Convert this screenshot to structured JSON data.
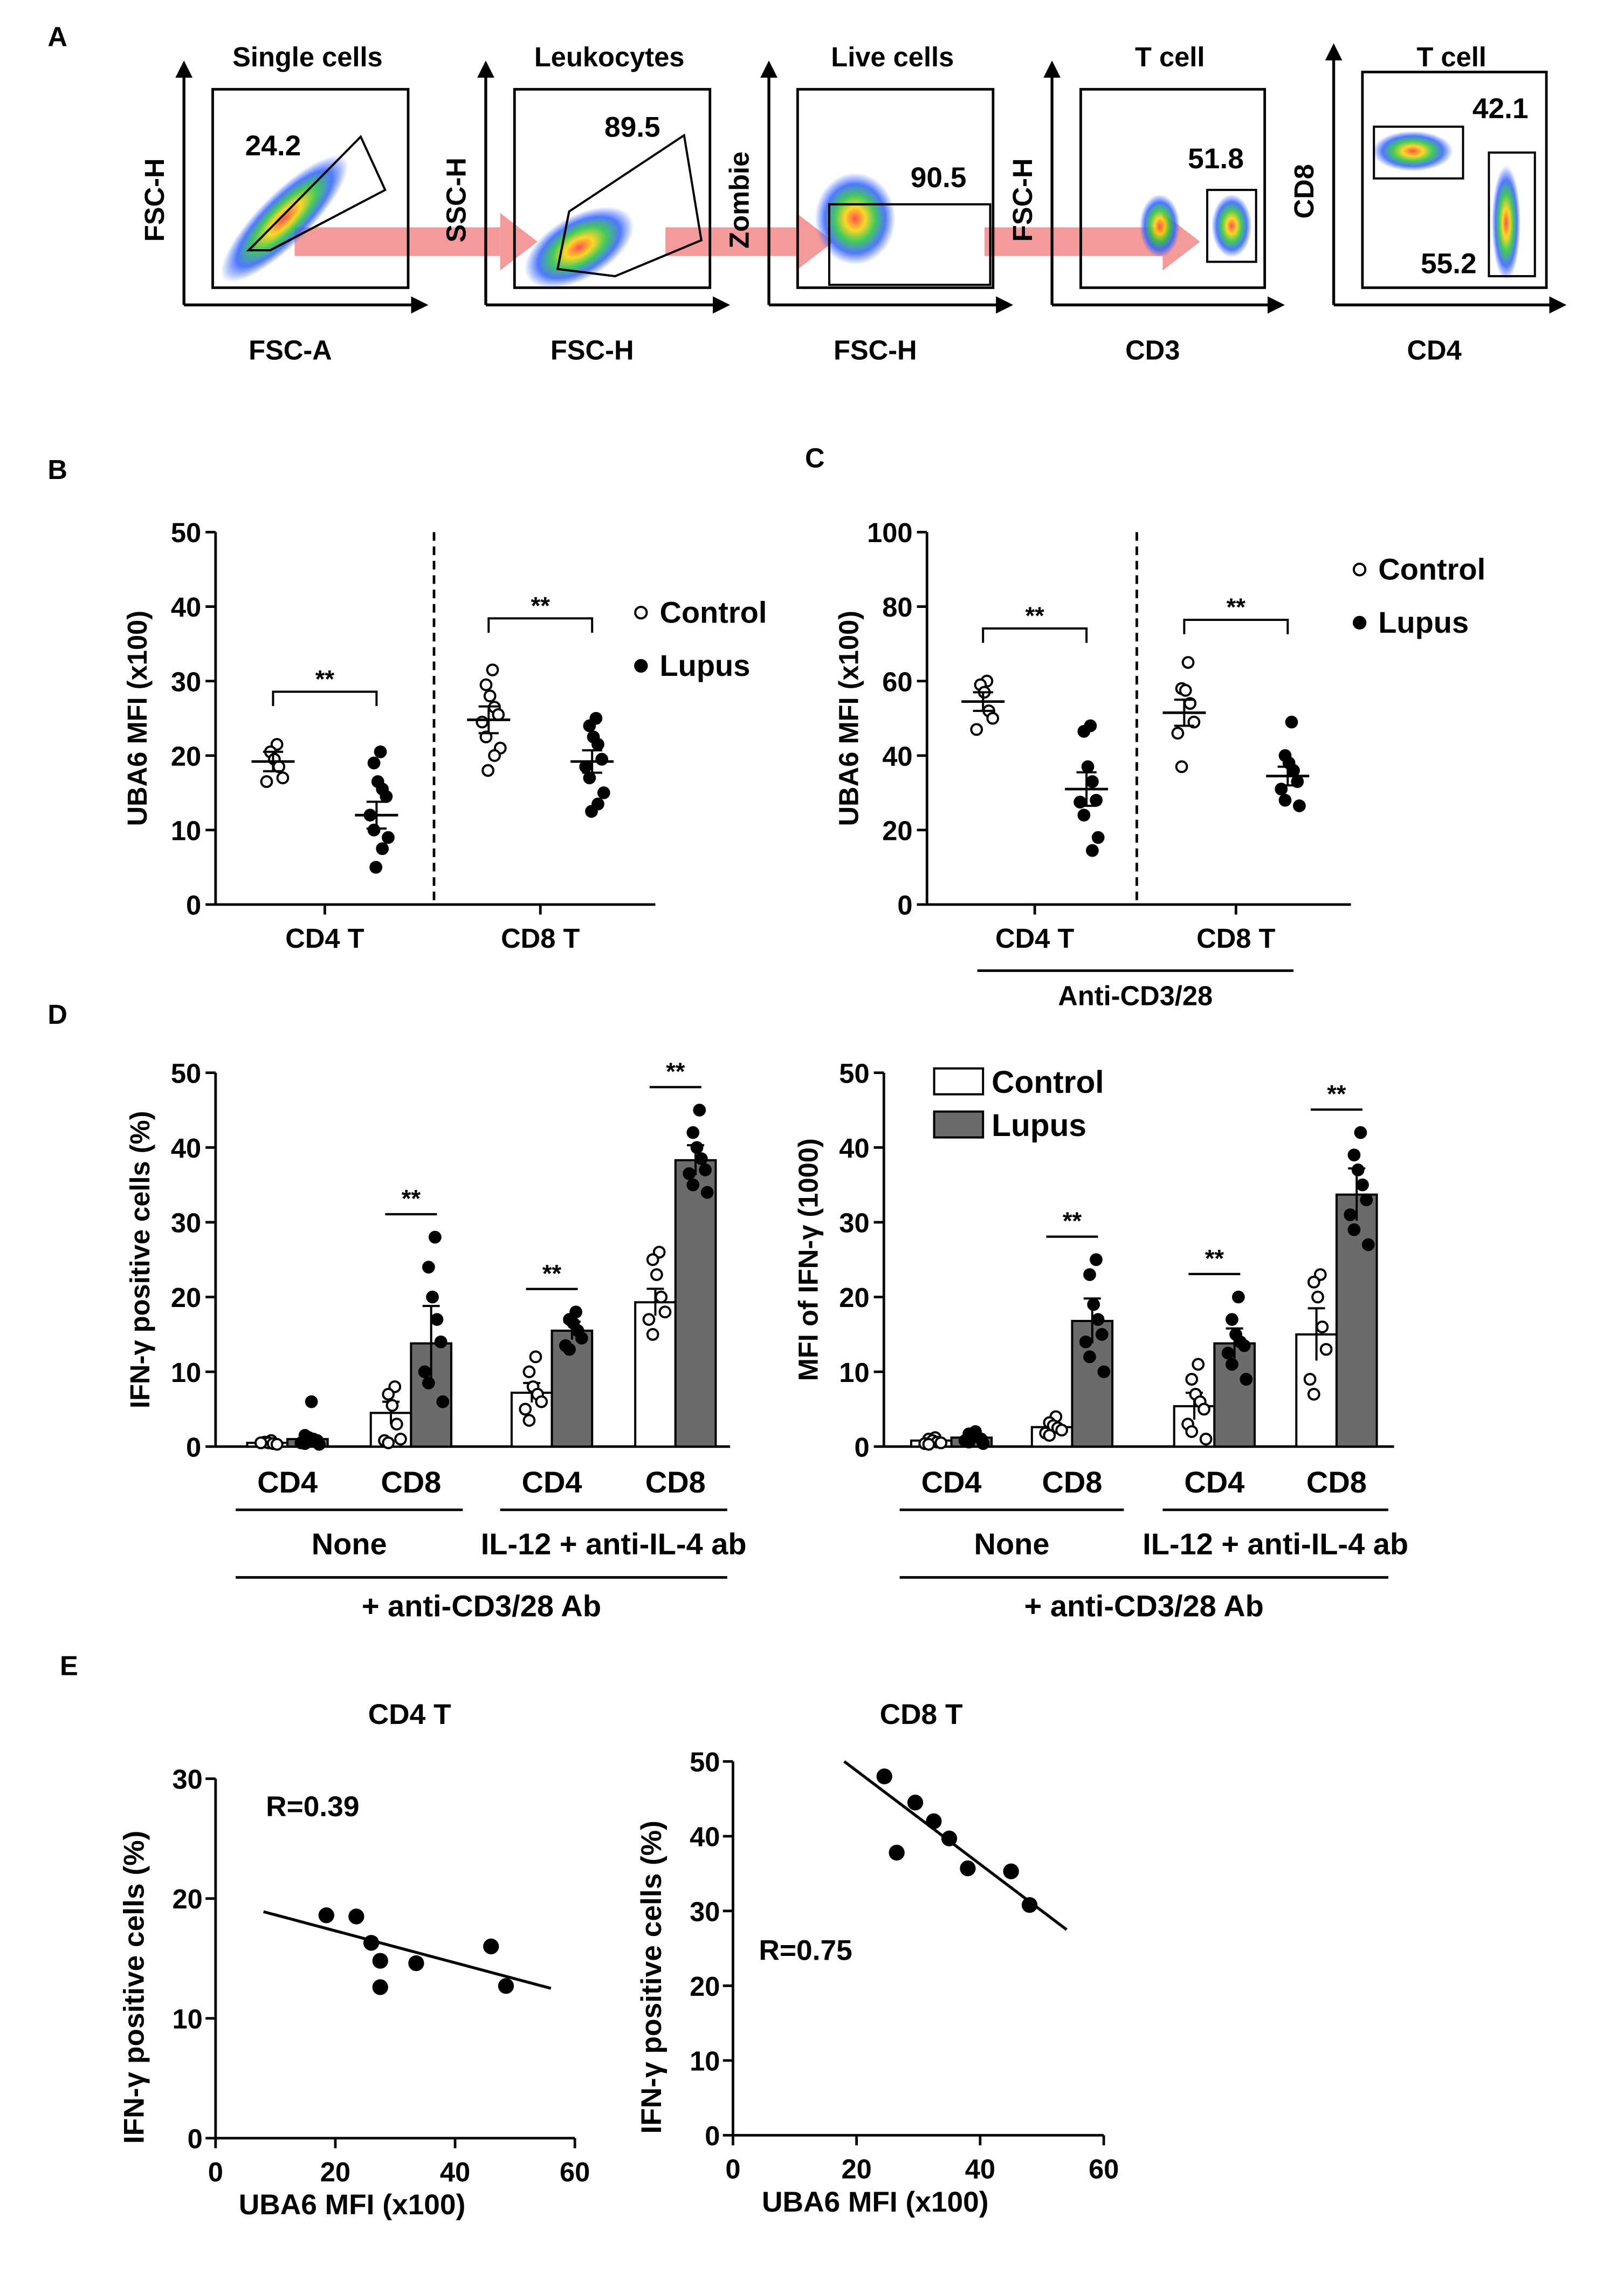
{
  "chart_data": [
    {
      "panel": "A",
      "type": "flow_cytometry_gating",
      "plots": [
        {
          "title": "Single cells",
          "xlabel": "FSC-A",
          "ylabel": "FSC-H",
          "gate_value": "24.2"
        },
        {
          "title": "Leukocytes",
          "xlabel": "FSC-H",
          "ylabel": "SSC-H",
          "gate_value": "89.5"
        },
        {
          "title": "Live cells",
          "xlabel": "FSC-H",
          "ylabel": "Zombie",
          "gate_value": "90.5"
        },
        {
          "title": "T cell",
          "xlabel": "CD3",
          "ylabel": "FSC-H",
          "gate_value": "51.8"
        },
        {
          "title": "T cell",
          "xlabel": "CD4",
          "ylabel": "CD8",
          "gate_values": [
            "42.1",
            "55.2"
          ]
        }
      ]
    },
    {
      "panel": "B",
      "type": "scatter",
      "ylabel": "UBA6 MFI (x100)",
      "ylim": [
        0,
        50
      ],
      "yticks": [
        "0",
        "10",
        "20",
        "30",
        "40",
        "50"
      ],
      "categories": [
        "CD4 T",
        "CD8 T"
      ],
      "legend": [
        "Control",
        "Lupus"
      ],
      "significance": "**",
      "groups": [
        {
          "category": "CD4 T",
          "series": "Control",
          "mean": 19.2,
          "sem": 1.3,
          "points": [
            21.5,
            20.5,
            19.5,
            18.5,
            17,
            16.5
          ]
        },
        {
          "category": "CD4 T",
          "series": "Lupus",
          "mean": 12.0,
          "sem": 1.8,
          "points": [
            20.5,
            19,
            16.5,
            15.5,
            14.5,
            12,
            10,
            9,
            7.5,
            5
          ]
        },
        {
          "category": "CD8 T",
          "series": "Control",
          "mean": 24.8,
          "sem": 1.8,
          "points": [
            31.5,
            29.5,
            28,
            26.5,
            25.5,
            24.5,
            22.5,
            21,
            20,
            18
          ]
        },
        {
          "category": "CD8 T",
          "series": "Lupus",
          "mean": 19.2,
          "sem": 1.5,
          "points": [
            25,
            24,
            22.5,
            21.5,
            19.5,
            18.5,
            17,
            15,
            13.5,
            12.5
          ]
        }
      ]
    },
    {
      "panel": "C",
      "type": "scatter",
      "ylabel": "UBA6 MFI (x100)",
      "ylim": [
        0,
        100
      ],
      "yticks": [
        "0",
        "20",
        "40",
        "60",
        "80",
        "100"
      ],
      "categories": [
        "CD4 T",
        "CD8 T"
      ],
      "group_label": "Anti-CD3/28",
      "legend": [
        "Control",
        "Lupus"
      ],
      "significance": "**",
      "groups": [
        {
          "category": "CD4 T",
          "series": "Control",
          "mean": 54.5,
          "sem": 2.5,
          "points": [
            60,
            59,
            57,
            52,
            50,
            47
          ]
        },
        {
          "category": "CD4 T",
          "series": "Lupus",
          "mean": 31.0,
          "sem": 4.5,
          "points": [
            48,
            46.5,
            37,
            33,
            28,
            27.5,
            24,
            18,
            14.5
          ]
        },
        {
          "category": "CD8 T",
          "series": "Control",
          "mean": 51.5,
          "sem": 3.5,
          "points": [
            65,
            58,
            57.5,
            54,
            49,
            46,
            37
          ]
        },
        {
          "category": "CD8 T",
          "series": "Lupus",
          "mean": 34.5,
          "sem": 2.5,
          "points": [
            49,
            40,
            38,
            36,
            33,
            31,
            28,
            26.5
          ]
        }
      ]
    },
    {
      "panel": "D",
      "type": "bar",
      "ylabel": "IFN-γ positive cells (%)",
      "ylim": [
        0,
        50
      ],
      "yticks": [
        "0",
        "10",
        "20",
        "30",
        "40",
        "50"
      ],
      "categories": [
        "CD4",
        "CD8",
        "CD4",
        "CD8"
      ],
      "condition_labels": [
        "None",
        "IL-12 + anti-IL-4 ab"
      ],
      "treatment_label": "+ anti-CD3/28 Ab",
      "significance": "**",
      "series": [
        {
          "name": "Control",
          "values": [
            0.5,
            4.5,
            7.2,
            19.3
          ],
          "errors": [
            0.2,
            1.5,
            1.3,
            1.8
          ],
          "points": [
            [
              0.8,
              0.6,
              0.5,
              0.4,
              0.3,
              0.5
            ],
            [
              8,
              7,
              5.5,
              3,
              1,
              0.8,
              0.5
            ],
            [
              12,
              10,
              8,
              7,
              6,
              5,
              3.5
            ],
            [
              26,
              25,
              23,
              20,
              18,
              17,
              15
            ]
          ]
        },
        {
          "name": "Lupus",
          "values": [
            1.0,
            13.8,
            15.5,
            38.3
          ],
          "errors": [
            0.6,
            5.0,
            1.2,
            2.0
          ],
          "points": [
            [
              6,
              1.5,
              1.2,
              1,
              0.8,
              0.5,
              0.4,
              0.3
            ],
            [
              28,
              24,
              20,
              17,
              14,
              10,
              8.5,
              6
            ],
            [
              18,
              17,
              16.5,
              15.5,
              14.5,
              13.5,
              13
            ],
            [
              45,
              42,
              40,
              38.5,
              37,
              36.5,
              35,
              34
            ]
          ]
        }
      ]
    },
    {
      "panel": "D",
      "type": "bar",
      "ylabel": "MFI of IFN-γ (1000)",
      "ylim": [
        0,
        50
      ],
      "yticks": [
        "0",
        "10",
        "20",
        "30",
        "40",
        "50"
      ],
      "categories": [
        "CD4",
        "CD8",
        "CD4",
        "CD8"
      ],
      "condition_labels": [
        "None",
        "IL-12 + anti-IL-4 ab"
      ],
      "treatment_label": "+ anti-CD3/28 Ab",
      "legend": [
        "Control",
        "Lupus"
      ],
      "significance": "**",
      "series": [
        {
          "name": "Control",
          "values": [
            0.8,
            2.6,
            5.4,
            15.0
          ],
          "errors": [
            0.3,
            0.5,
            1.8,
            3.5
          ],
          "points": [
            [
              1.2,
              1,
              0.8,
              0.6,
              0.5,
              0.4,
              0.3
            ],
            [
              4,
              3.2,
              2.8,
              2.5,
              2.2,
              1.8,
              1.5
            ],
            [
              11,
              9,
              7,
              6,
              5,
              3,
              2,
              1
            ],
            [
              23,
              22,
              20,
              16,
              13,
              9,
              7
            ]
          ]
        },
        {
          "name": "Lupus",
          "values": [
            1.2,
            16.8,
            13.8,
            33.7
          ],
          "errors": [
            0.3,
            3.0,
            2.0,
            3.5
          ],
          "points": [
            [
              2,
              1.7,
              1.5,
              1.3,
              1,
              0.8,
              0.6,
              0.4
            ],
            [
              25,
              23,
              19,
              17,
              15,
              14,
              12,
              10
            ],
            [
              20,
              17,
              15,
              14,
              13.5,
              12.5,
              11,
              9
            ],
            [
              42,
              39,
              37,
              35,
              33,
              31,
              29,
              27
            ]
          ]
        }
      ]
    },
    {
      "panel": "E",
      "type": "scatter",
      "title": "CD4 T",
      "xlabel": "UBA6 MFI (x100)",
      "ylabel": "IFN-γ positive cells (%)",
      "xlim": [
        0,
        60
      ],
      "ylim": [
        0,
        30
      ],
      "xticks": [
        "0",
        "20",
        "40",
        "60"
      ],
      "yticks": [
        "0",
        "10",
        "20",
        "30"
      ],
      "annotation": "R=0.39",
      "fit_line": [
        [
          8,
          18.9
        ],
        [
          56,
          12.5
        ]
      ],
      "points": [
        [
          18.5,
          18.6
        ],
        [
          23.5,
          18.5
        ],
        [
          26,
          16.3
        ],
        [
          27.5,
          14.8
        ],
        [
          27.5,
          12.6
        ],
        [
          33.5,
          14.6
        ],
        [
          46,
          16
        ],
        [
          48.5,
          12.7
        ]
      ]
    },
    {
      "panel": "E",
      "type": "scatter",
      "title": "CD8 T",
      "xlabel": "UBA6 MFI (x100)",
      "ylabel": "IFN-γ positive cells (%)",
      "xlim": [
        0,
        60
      ],
      "ylim": [
        0,
        50
      ],
      "xticks": [
        "0",
        "20",
        "40",
        "60"
      ],
      "yticks": [
        "0",
        "10",
        "20",
        "30",
        "40",
        "50"
      ],
      "annotation": "R=0.75",
      "fit_line": [
        [
          18,
          50
        ],
        [
          54,
          27.5
        ]
      ],
      "points": [
        [
          24.5,
          48
        ],
        [
          26.5,
          37.8
        ],
        [
          29.5,
          44.5
        ],
        [
          32.5,
          42
        ],
        [
          35,
          39.7
        ],
        [
          38,
          35.7
        ],
        [
          45,
          35.3
        ],
        [
          48,
          30.8
        ]
      ]
    }
  ],
  "panel_letters": [
    "A",
    "B",
    "C",
    "D",
    "E"
  ],
  "colors": {
    "axis": "#000000",
    "bar_control": "#ffffff",
    "bar_lupus": "#6b6b6b",
    "arrow": "#f07878",
    "gate": "#000000"
  }
}
